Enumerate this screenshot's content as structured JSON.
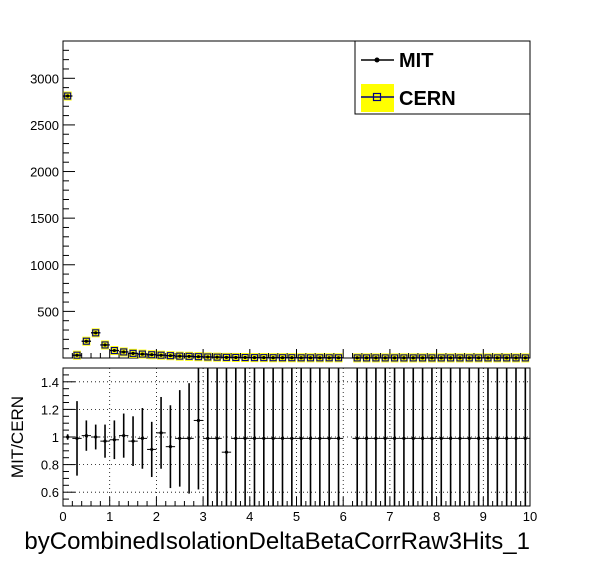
{
  "chart_data": [
    {
      "type": "scatter",
      "role": "main",
      "xlim": [
        0,
        10
      ],
      "ylim": [
        0,
        3400
      ],
      "y_ticks": [
        500,
        1000,
        1500,
        2000,
        2500,
        3000
      ],
      "legend": {
        "placement": "top-right",
        "entries": [
          "MIT",
          "CERN"
        ]
      },
      "series": [
        {
          "name": "MIT",
          "color": "#000000",
          "marker": "filled-circle",
          "x": [
            0.1,
            0.3,
            0.5,
            0.7,
            0.9,
            1.1,
            1.3,
            1.5,
            1.7,
            1.9,
            2.1,
            2.3,
            2.5,
            2.7,
            2.9,
            3.1,
            3.3,
            3.5,
            3.7,
            3.9,
            4.1,
            4.3,
            4.5,
            4.7,
            4.9,
            5.1,
            5.3,
            5.5,
            5.7,
            5.9,
            6.3,
            6.5,
            6.7,
            6.9,
            7.1,
            7.3,
            7.5,
            7.7,
            7.9,
            8.1,
            8.3,
            8.5,
            8.7,
            8.9,
            9.1,
            9.3,
            9.5,
            9.7,
            9.9
          ],
          "y": [
            2810,
            30,
            180,
            270,
            140,
            80,
            65,
            50,
            42,
            35,
            30,
            25,
            20,
            18,
            14,
            11,
            9,
            7,
            6,
            5,
            4,
            4,
            3,
            3,
            3,
            2,
            2,
            2,
            2,
            2,
            1,
            1,
            1,
            1,
            1,
            1,
            1,
            1,
            1,
            1,
            1,
            1,
            1,
            1,
            1,
            1,
            1,
            1,
            1
          ]
        },
        {
          "name": "CERN",
          "color": "#000080",
          "fill": "#ffff00",
          "marker": "open-square",
          "x": [
            0.1,
            0.3,
            0.5,
            0.7,
            0.9,
            1.1,
            1.3,
            1.5,
            1.7,
            1.9,
            2.1,
            2.3,
            2.5,
            2.7,
            2.9,
            3.1,
            3.3,
            3.5,
            3.7,
            3.9,
            4.1,
            4.3,
            4.5,
            4.7,
            4.9,
            5.1,
            5.3,
            5.5,
            5.7,
            5.9,
            6.3,
            6.5,
            6.7,
            6.9,
            7.1,
            7.3,
            7.5,
            7.7,
            7.9,
            8.1,
            8.3,
            8.5,
            8.7,
            8.9,
            9.1,
            9.3,
            9.5,
            9.7,
            9.9
          ],
          "y": [
            2810,
            30,
            180,
            270,
            140,
            80,
            65,
            50,
            42,
            35,
            30,
            25,
            20,
            18,
            14,
            11,
            9,
            7,
            6,
            5,
            4,
            4,
            3,
            3,
            3,
            2,
            2,
            2,
            2,
            2,
            1,
            1,
            1,
            1,
            1,
            1,
            1,
            1,
            1,
            1,
            1,
            1,
            1,
            1,
            1,
            1,
            1,
            1,
            1
          ]
        }
      ]
    },
    {
      "type": "scatter",
      "role": "ratio",
      "ylabel": "MIT/CERN",
      "xlabel": "byCombinedIsolationDeltaBetaCorrRaw3Hits_1",
      "xlim": [
        0,
        10
      ],
      "ylim": [
        0.5,
        1.5
      ],
      "x_ticks": [
        0,
        1,
        2,
        3,
        4,
        5,
        6,
        7,
        8,
        9,
        10
      ],
      "y_ticks": [
        0.6,
        0.8,
        1,
        1.2,
        1.4
      ],
      "grid": true,
      "series": [
        {
          "name": "MIT/CERN",
          "x": [
            0.1,
            0.3,
            0.5,
            0.7,
            0.9,
            1.1,
            1.3,
            1.5,
            1.7,
            1.9,
            2.1,
            2.3,
            2.5,
            2.7,
            2.9,
            3.1,
            3.3,
            3.5,
            3.7,
            3.9,
            4.1,
            4.3,
            4.5,
            4.7,
            4.9,
            5.1,
            5.3,
            5.5,
            5.7,
            5.9,
            6.3,
            6.5,
            6.7,
            6.9,
            7.1,
            7.3,
            7.5,
            7.7,
            7.9,
            8.1,
            8.3,
            8.5,
            8.7,
            8.9,
            9.1,
            9.3,
            9.5,
            9.7,
            9.9
          ],
          "y": [
            1.0,
            0.99,
            1.01,
            1.0,
            0.97,
            0.98,
            1.01,
            0.97,
            0.99,
            0.91,
            1.03,
            0.93,
            0.99,
            0.99,
            1.12,
            0.99,
            0.99,
            0.89,
            0.99,
            0.99,
            0.99,
            0.99,
            0.99,
            0.99,
            0.99,
            0.99,
            0.99,
            0.99,
            0.99,
            0.99,
            0.99,
            0.99,
            0.99,
            0.99,
            0.99,
            0.99,
            0.99,
            0.99,
            0.99,
            0.99,
            0.99,
            0.99,
            0.99,
            0.99,
            0.99,
            0.99,
            0.99,
            0.99,
            0.99
          ],
          "err": [
            0.02,
            0.27,
            0.11,
            0.09,
            0.12,
            0.14,
            0.16,
            0.18,
            0.22,
            0.2,
            0.26,
            0.3,
            0.35,
            0.4,
            0.5,
            1,
            1,
            1,
            1,
            1,
            1,
            1,
            1,
            1,
            1,
            1,
            1,
            1,
            1,
            1,
            1,
            1,
            1,
            1,
            1,
            1,
            1,
            1,
            1,
            1,
            1,
            1,
            1,
            1,
            1,
            1,
            1,
            1,
            1
          ]
        }
      ]
    }
  ]
}
